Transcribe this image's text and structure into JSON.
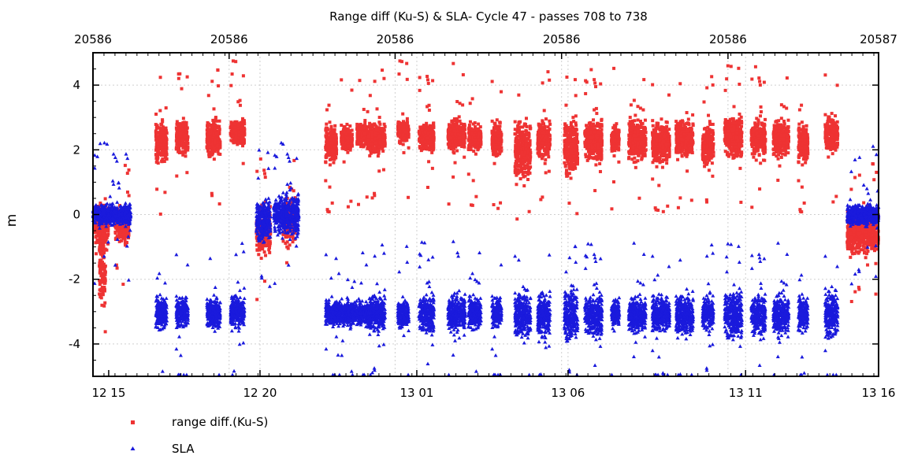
{
  "chart_data": {
    "type": "scatter",
    "title": "Range diff (Ku-S) & SLA- Cycle 47 - passes 708 to 738",
    "ylabel": "m",
    "xlabel": "",
    "xlim": [
      0,
      1000
    ],
    "ylim": [
      -5,
      5
    ],
    "yticks": [
      -4,
      -2,
      0,
      2,
      4
    ],
    "top_ticks": [
      {
        "x": 0,
        "label": "20586"
      },
      {
        "x": 173.3,
        "label": "20586"
      },
      {
        "x": 384.6,
        "label": "20586"
      },
      {
        "x": 596.5,
        "label": "20586"
      },
      {
        "x": 808.3,
        "label": "20586"
      },
      {
        "x": 1000,
        "label": "20587"
      }
    ],
    "bottom_ticks": [
      {
        "x": 20,
        "label": "12 15"
      },
      {
        "x": 212.6,
        "label": "12 20"
      },
      {
        "x": 412.2,
        "label": "13 01"
      },
      {
        "x": 604.7,
        "label": "13 06"
      },
      {
        "x": 830.7,
        "label": "13 11"
      },
      {
        "x": 1000,
        "label": "13 16"
      }
    ],
    "grid": true,
    "legend_position": "bottom-left",
    "series": [
      {
        "name": "range diff.(Ku-S)",
        "color": "#ee3333",
        "marker": "square",
        "clusters": [
          {
            "x": [
              2,
              20
            ],
            "y": [
              -0.9,
              0.3
            ]
          },
          {
            "x": [
              8,
              16
            ],
            "y": [
              -2.9,
              -0.4
            ]
          },
          {
            "x": [
              28,
              46
            ],
            "y": [
              -0.9,
              0.2
            ]
          },
          {
            "x": [
              80,
              94
            ],
            "y": [
              1.6,
              2.9
            ]
          },
          {
            "x": [
              106,
              121
            ],
            "y": [
              1.9,
              2.9
            ]
          },
          {
            "x": [
              145,
              162
            ],
            "y": [
              1.8,
              2.9
            ]
          },
          {
            "x": [
              175,
              193
            ],
            "y": [
              2.2,
              2.9
            ]
          },
          {
            "x": [
              208,
              226
            ],
            "y": [
              -1.2,
              0.2
            ]
          },
          {
            "x": [
              242,
              258
            ],
            "y": [
              -0.9,
              0.5
            ]
          },
          {
            "x": [
              296,
              310
            ],
            "y": [
              1.6,
              2.7
            ]
          },
          {
            "x": [
              316,
              330
            ],
            "y": [
              2.0,
              2.7
            ]
          },
          {
            "x": [
              336,
              350
            ],
            "y": [
              2.1,
              2.8
            ]
          },
          {
            "x": [
              350,
              372
            ],
            "y": [
              1.9,
              2.8
            ]
          },
          {
            "x": [
              388,
              402
            ],
            "y": [
              2.2,
              2.9
            ]
          },
          {
            "x": [
              415,
              434
            ],
            "y": [
              2.0,
              2.8
            ]
          },
          {
            "x": [
              452,
              474
            ],
            "y": [
              2.0,
              2.9
            ]
          },
          {
            "x": [
              478,
              494
            ],
            "y": [
              2.0,
              2.7
            ]
          },
          {
            "x": [
              508,
              520
            ],
            "y": [
              1.8,
              2.8
            ]
          },
          {
            "x": [
              537,
              557
            ],
            "y": [
              1.1,
              2.9
            ]
          },
          {
            "x": [
              566,
              582
            ],
            "y": [
              1.7,
              2.9
            ]
          },
          {
            "x": [
              600,
              617
            ],
            "y": [
              1.2,
              2.9
            ]
          },
          {
            "x": [
              626,
              648
            ],
            "y": [
              1.7,
              2.9
            ]
          },
          {
            "x": [
              660,
              670
            ],
            "y": [
              1.9,
              2.7
            ]
          },
          {
            "x": [
              682,
              704
            ],
            "y": [
              1.7,
              2.9
            ]
          },
          {
            "x": [
              712,
              734
            ],
            "y": [
              1.6,
              2.8
            ]
          },
          {
            "x": [
              742,
              764
            ],
            "y": [
              1.8,
              2.9
            ]
          },
          {
            "x": [
              776,
              790
            ],
            "y": [
              1.5,
              2.8
            ]
          },
          {
            "x": [
              804,
              826
            ],
            "y": [
              1.8,
              3.0
            ]
          },
          {
            "x": [
              838,
              856
            ],
            "y": [
              1.8,
              2.9
            ]
          },
          {
            "x": [
              866,
              886
            ],
            "y": [
              1.8,
              2.9
            ]
          },
          {
            "x": [
              898,
              910
            ],
            "y": [
              1.6,
              2.7
            ]
          },
          {
            "x": [
              932,
              948
            ],
            "y": [
              2.0,
              3.0
            ]
          },
          {
            "x": [
              960,
              1000
            ],
            "y": [
              -1.2,
              0.1
            ]
          }
        ]
      },
      {
        "name": "SLA",
        "color": "#1a1adc",
        "marker": "triangle",
        "clusters": [
          {
            "x": [
              0,
              48
            ],
            "y": [
              -0.3,
              0.3
            ]
          },
          {
            "x": [
              80,
              94
            ],
            "y": [
              -3.5,
              -2.6
            ]
          },
          {
            "x": [
              106,
              121
            ],
            "y": [
              -3.5,
              -2.6
            ]
          },
          {
            "x": [
              145,
              162
            ],
            "y": [
              -3.5,
              -2.6
            ]
          },
          {
            "x": [
              175,
              193
            ],
            "y": [
              -3.5,
              -2.5
            ]
          },
          {
            "x": [
              208,
              226
            ],
            "y": [
              -0.8,
              0.4
            ]
          },
          {
            "x": [
              230,
              262
            ],
            "y": [
              -0.6,
              0.6
            ]
          },
          {
            "x": [
              296,
              350
            ],
            "y": [
              -3.4,
              -2.7
            ]
          },
          {
            "x": [
              350,
              372
            ],
            "y": [
              -3.6,
              -2.5
            ]
          },
          {
            "x": [
              388,
              402
            ],
            "y": [
              -3.5,
              -2.7
            ]
          },
          {
            "x": [
              415,
              434
            ],
            "y": [
              -3.6,
              -2.5
            ]
          },
          {
            "x": [
              452,
              474
            ],
            "y": [
              -3.6,
              -2.5
            ]
          },
          {
            "x": [
              478,
              494
            ],
            "y": [
              -3.5,
              -2.6
            ]
          },
          {
            "x": [
              508,
              520
            ],
            "y": [
              -3.5,
              -2.6
            ]
          },
          {
            "x": [
              537,
              557
            ],
            "y": [
              -3.8,
              -2.4
            ]
          },
          {
            "x": [
              566,
              582
            ],
            "y": [
              -3.8,
              -2.4
            ]
          },
          {
            "x": [
              600,
              617
            ],
            "y": [
              -3.9,
              -2.3
            ]
          },
          {
            "x": [
              626,
              648
            ],
            "y": [
              -3.7,
              -2.5
            ]
          },
          {
            "x": [
              660,
              670
            ],
            "y": [
              -3.5,
              -2.6
            ]
          },
          {
            "x": [
              682,
              704
            ],
            "y": [
              -3.6,
              -2.6
            ]
          },
          {
            "x": [
              712,
              734
            ],
            "y": [
              -3.6,
              -2.6
            ]
          },
          {
            "x": [
              742,
              764
            ],
            "y": [
              -3.7,
              -2.5
            ]
          },
          {
            "x": [
              776,
              790
            ],
            "y": [
              -3.6,
              -2.5
            ]
          },
          {
            "x": [
              804,
              826
            ],
            "y": [
              -3.8,
              -2.4
            ]
          },
          {
            "x": [
              838,
              856
            ],
            "y": [
              -3.7,
              -2.5
            ]
          },
          {
            "x": [
              866,
              886
            ],
            "y": [
              -3.7,
              -2.5
            ]
          },
          {
            "x": [
              898,
              910
            ],
            "y": [
              -3.6,
              -2.6
            ]
          },
          {
            "x": [
              932,
              948
            ],
            "y": [
              -3.8,
              -2.4
            ]
          },
          {
            "x": [
              960,
              1000
            ],
            "y": [
              -0.3,
              0.3
            ]
          }
        ]
      }
    ]
  }
}
